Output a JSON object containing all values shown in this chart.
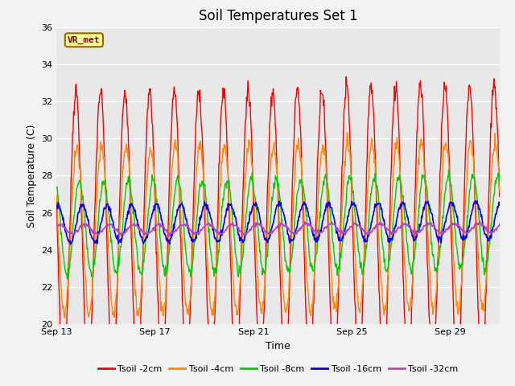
{
  "title": "Soil Temperatures Set 1",
  "xlabel": "Time",
  "ylabel": "Soil Temperature (C)",
  "ylim": [
    20,
    36
  ],
  "xlim_days": [
    0,
    18
  ],
  "x_ticks_days": [
    0,
    4,
    8,
    12,
    16
  ],
  "x_tick_labels": [
    "Sep 13",
    "Sep 17",
    "Sep 21",
    "Sep 25",
    "Sep 29"
  ],
  "annotation_text": "VR_met",
  "annotation_bg": "#FFFF99",
  "annotation_border": "#996600",
  "annotation_text_color": "#880000",
  "plot_bg": "#E8E8E8",
  "fig_bg": "#F2F2F2",
  "series_colors": [
    "#FF0000",
    "#FF8800",
    "#00CC00",
    "#0000EE",
    "#BB44BB"
  ],
  "series_labels": [
    "Tsoil -2cm",
    "Tsoil -4cm",
    "Tsoil -8cm",
    "Tsoil -16cm",
    "Tsoil -32cm"
  ],
  "series_linewidths": [
    1.0,
    1.0,
    1.0,
    1.2,
    1.2
  ],
  "n_days": 18,
  "samples_per_day": 48,
  "title_fontsize": 12,
  "axis_label_fontsize": 9,
  "tick_fontsize": 8,
  "legend_fontsize": 8,
  "amp_2cm": 7.5,
  "amp_4cm": 4.5,
  "amp_8cm": 2.5,
  "amp_16cm": 1.0,
  "amp_32cm": 0.25,
  "phase_2cm": 0.28,
  "phase_4cm": 0.32,
  "phase_8cm": 0.42,
  "phase_16cm": 0.55,
  "phase_32cm": 0.65,
  "mean_2cm": 25.0,
  "mean_4cm": 25.0,
  "mean_8cm": 25.2,
  "mean_16cm": 25.4,
  "mean_32cm": 25.1,
  "trend_2cm": 0.02,
  "trend_4cm": 0.02,
  "trend_8cm": 0.015,
  "trend_16cm": 0.01,
  "trend_32cm": 0.005
}
